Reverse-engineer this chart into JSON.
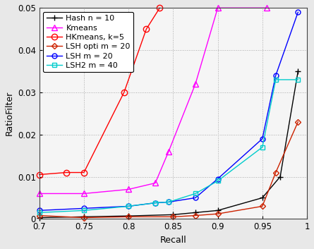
{
  "title": "",
  "xlabel": "Recall",
  "ylabel": "RatioFilter",
  "xlim": [
    0.7,
    1.0
  ],
  "ylim": [
    0.0,
    0.05
  ],
  "series": [
    {
      "label": "Hash n = 10",
      "color": "#000000",
      "marker": "+",
      "markersize": 6,
      "linewidth": 1.0,
      "x": [
        0.7,
        0.75,
        0.8,
        0.85,
        0.875,
        0.9,
        0.95,
        0.97,
        0.99
      ],
      "y": [
        0.0003,
        0.0005,
        0.0007,
        0.001,
        0.0015,
        0.002,
        0.005,
        0.01,
        0.035
      ]
    },
    {
      "label": "Kmeans",
      "color": "#ff00ff",
      "marker": "^",
      "markersize": 6,
      "linewidth": 1.0,
      "x": [
        0.7,
        0.75,
        0.8,
        0.83,
        0.845,
        0.875,
        0.9,
        0.955
      ],
      "y": [
        0.006,
        0.006,
        0.007,
        0.0085,
        0.016,
        0.032,
        0.05,
        0.05
      ]
    },
    {
      "label": "HKmeans, k=5",
      "color": "#ff0000",
      "marker": "o",
      "markersize": 6,
      "linewidth": 1.0,
      "x": [
        0.7,
        0.73,
        0.75,
        0.795,
        0.82,
        0.835
      ],
      "y": [
        0.0105,
        0.011,
        0.011,
        0.03,
        0.045,
        0.05
      ]
    },
    {
      "label": "LSH opti m = 20",
      "color": "#cc2200",
      "marker": "D",
      "markersize": 4,
      "linewidth": 1.0,
      "x": [
        0.7,
        0.75,
        0.8,
        0.85,
        0.875,
        0.9,
        0.95,
        0.965,
        0.99
      ],
      "y": [
        0.0008,
        0.0003,
        0.0005,
        0.0005,
        0.0008,
        0.0012,
        0.003,
        0.011,
        0.023
      ]
    },
    {
      "label": "LSH m = 20",
      "color": "#0000ff",
      "marker": "o",
      "markersize": 5,
      "linewidth": 1.0,
      "x": [
        0.7,
        0.75,
        0.8,
        0.83,
        0.845,
        0.875,
        0.9,
        0.95,
        0.965,
        0.99
      ],
      "y": [
        0.002,
        0.0025,
        0.003,
        0.0038,
        0.004,
        0.005,
        0.0095,
        0.019,
        0.034,
        0.049
      ]
    },
    {
      "label": "LSH2 m = 40",
      "color": "#00cccc",
      "marker": "s",
      "markersize": 5,
      "linewidth": 1.0,
      "x": [
        0.7,
        0.75,
        0.8,
        0.83,
        0.845,
        0.875,
        0.9,
        0.95,
        0.965,
        0.99
      ],
      "y": [
        0.0015,
        0.002,
        0.003,
        0.0038,
        0.004,
        0.006,
        0.009,
        0.017,
        0.033,
        0.033
      ]
    }
  ],
  "xticks": [
    0.7,
    0.75,
    0.8,
    0.85,
    0.9,
    0.95,
    1.0
  ],
  "yticks": [
    0.0,
    0.01,
    0.02,
    0.03,
    0.04,
    0.05
  ],
  "grid": true,
  "legend_loc": "upper left",
  "legend_fontsize": 8,
  "axis_label_fontsize": 9,
  "tick_fontsize": 8.5,
  "bg_color": "#f0f0f0"
}
